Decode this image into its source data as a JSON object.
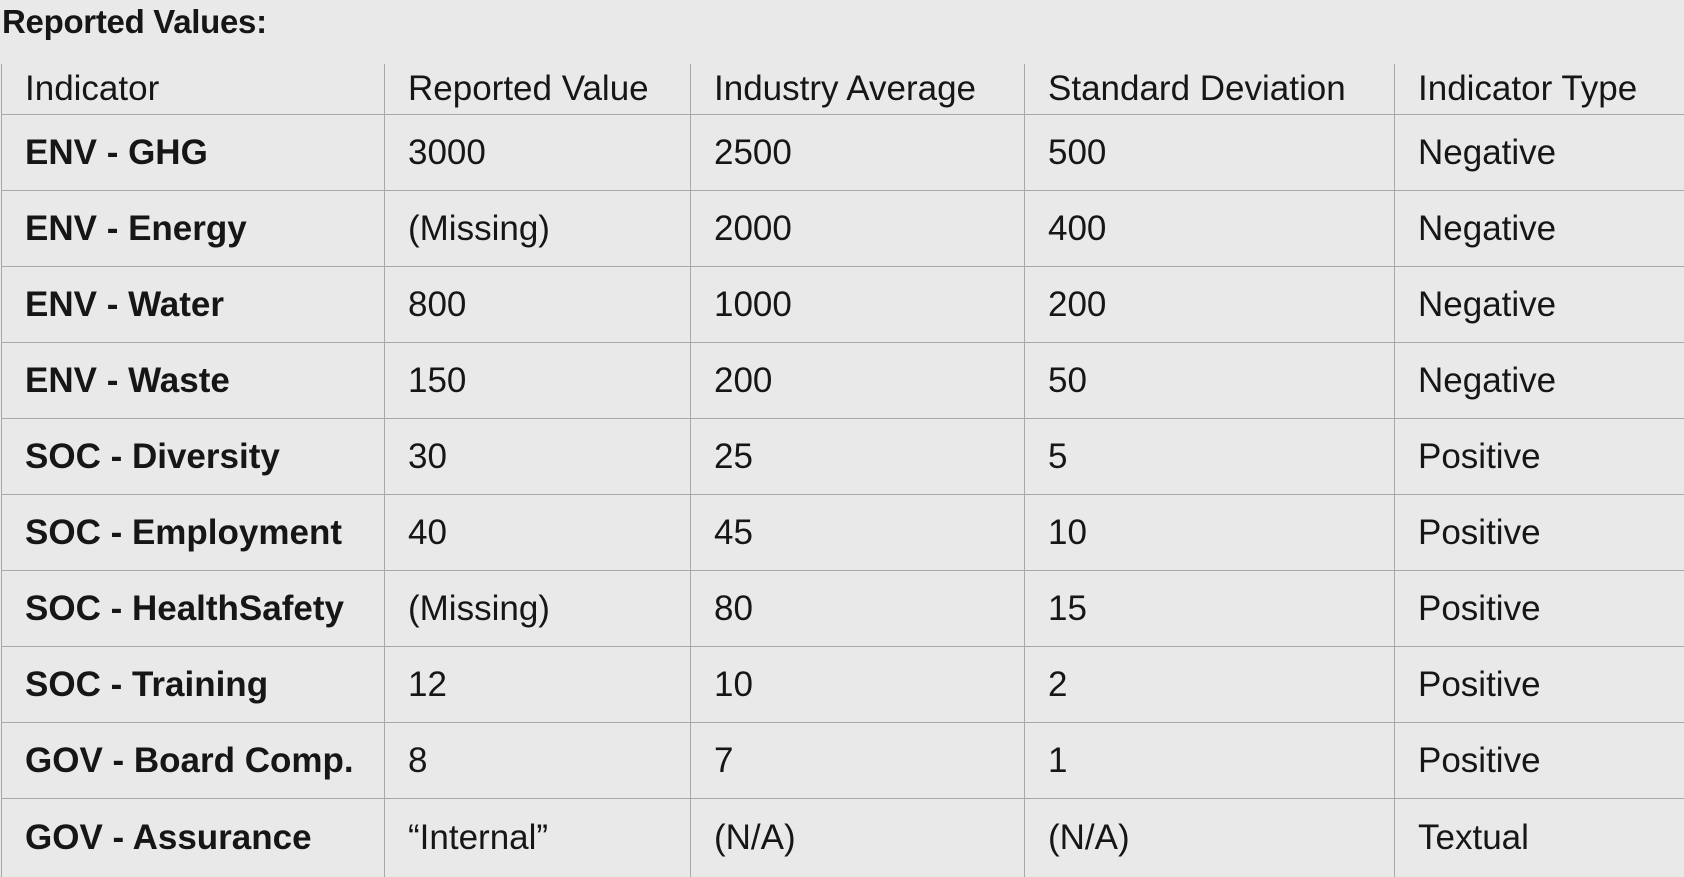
{
  "title": "Reported Values:",
  "table": {
    "headers": [
      "Indicator",
      "Reported Value",
      "Industry Average",
      "Standard Deviation",
      "Indicator Type"
    ],
    "rows": [
      [
        "ENV - GHG",
        "3000",
        "2500",
        "500",
        "Negative"
      ],
      [
        "ENV - Energy",
        "(Missing)",
        "2000",
        "400",
        "Negative"
      ],
      [
        "ENV - Water",
        "800",
        "1000",
        "200",
        "Negative"
      ],
      [
        "ENV - Waste",
        "150",
        "200",
        "50",
        "Negative"
      ],
      [
        "SOC - Diversity",
        "30",
        "25",
        "5",
        "Positive"
      ],
      [
        "SOC - Employment",
        "40",
        "45",
        "10",
        "Positive"
      ],
      [
        "SOC - HealthSafety",
        "(Missing)",
        "80",
        "15",
        "Positive"
      ],
      [
        "SOC - Training",
        "12",
        "10",
        "2",
        "Positive"
      ],
      [
        "GOV - Board Comp.",
        "8",
        "7",
        "1",
        "Positive"
      ],
      [
        "GOV - Assurance",
        "“Internal”",
        "(N/A)",
        "(N/A)",
        "Textual"
      ]
    ]
  }
}
